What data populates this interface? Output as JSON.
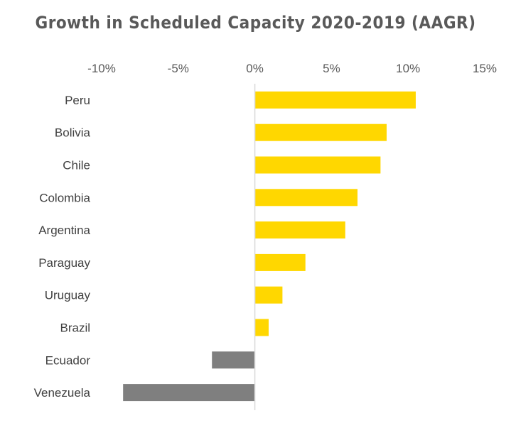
{
  "chart_data": {
    "type": "bar",
    "orientation": "horizontal",
    "title": "Growth in Scheduled Capacity 2020-2019 (AAGR)",
    "xlabel": "",
    "ylabel": "",
    "xlim": [
      -10,
      15
    ],
    "xticks": [
      -10,
      -5,
      0,
      5,
      10,
      15
    ],
    "xtick_labels": [
      "-10%",
      "-5%",
      "0%",
      "5%",
      "10%",
      "15%"
    ],
    "categories": [
      "Peru",
      "Bolivia",
      "Chile",
      "Colombia",
      "Argentina",
      "Paraguay",
      "Uruguay",
      "Brazil",
      "Ecuador",
      "Venezuela"
    ],
    "values": [
      10.5,
      8.6,
      8.2,
      6.7,
      5.9,
      3.3,
      1.8,
      0.9,
      -2.8,
      -8.6
    ],
    "unit": "%",
    "grid": false,
    "colors": {
      "positive": "#FFD700",
      "negative": "#7F7F7F",
      "axis": "#D9D9D9"
    }
  }
}
